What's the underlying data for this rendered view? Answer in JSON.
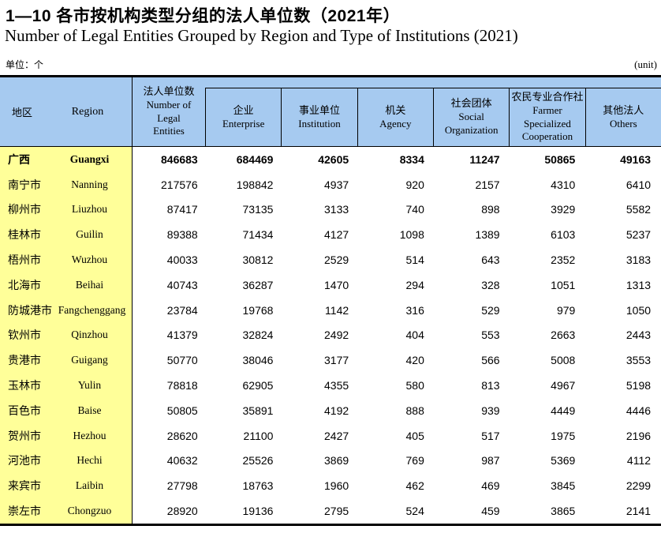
{
  "page": {
    "title_cn": "1—10 各市按机构类型分组的法人单位数（2021年）",
    "title_en": "Number of Legal Entities Grouped by Region and Type of Institutions (2021)",
    "unit_cn": "单位：个",
    "unit_en": "(unit)"
  },
  "colors": {
    "header_bg": "#A6CAF0",
    "region_col_bg": "#FFFF99",
    "border": "#000000"
  },
  "table": {
    "region_header": {
      "cn": "地区",
      "en": "Region"
    },
    "total_header": {
      "cn": "法人单位数",
      "en": "Number of\nLegal\nEntities"
    },
    "columns": [
      {
        "cn": "企业",
        "en": "Enterprise"
      },
      {
        "cn": "事业单位",
        "en": "Institution"
      },
      {
        "cn": "机关",
        "en": "Agency"
      },
      {
        "cn": "社会团体",
        "en": "Social\nOrganization"
      },
      {
        "cn": "农民专业合作社",
        "en": "Farmer\nSpecialized\nCooperation"
      },
      {
        "cn": "其他法人",
        "en": "Others"
      }
    ],
    "rows": [
      {
        "cn": "广西",
        "en": "Guangxi",
        "bold": true,
        "values": [
          846683,
          684469,
          42605,
          8334,
          11247,
          50865,
          49163
        ]
      },
      {
        "cn": "南宁市",
        "en": "Nanning",
        "bold": false,
        "values": [
          217576,
          198842,
          4937,
          920,
          2157,
          4310,
          6410
        ]
      },
      {
        "cn": "柳州市",
        "en": "Liuzhou",
        "bold": false,
        "values": [
          87417,
          73135,
          3133,
          740,
          898,
          3929,
          5582
        ]
      },
      {
        "cn": "桂林市",
        "en": "Guilin",
        "bold": false,
        "values": [
          89388,
          71434,
          4127,
          1098,
          1389,
          6103,
          5237
        ]
      },
      {
        "cn": "梧州市",
        "en": "Wuzhou",
        "bold": false,
        "values": [
          40033,
          30812,
          2529,
          514,
          643,
          2352,
          3183
        ]
      },
      {
        "cn": "北海市",
        "en": "Beihai",
        "bold": false,
        "values": [
          40743,
          36287,
          1470,
          294,
          328,
          1051,
          1313
        ]
      },
      {
        "cn": "防城港市",
        "en": "Fangchenggang",
        "bold": false,
        "values": [
          23784,
          19768,
          1142,
          316,
          529,
          979,
          1050
        ]
      },
      {
        "cn": "钦州市",
        "en": "Qinzhou",
        "bold": false,
        "values": [
          41379,
          32824,
          2492,
          404,
          553,
          2663,
          2443
        ]
      },
      {
        "cn": "贵港市",
        "en": "Guigang",
        "bold": false,
        "values": [
          50770,
          38046,
          3177,
          420,
          566,
          5008,
          3553
        ]
      },
      {
        "cn": "玉林市",
        "en": "Yulin",
        "bold": false,
        "values": [
          78818,
          62905,
          4355,
          580,
          813,
          4967,
          5198
        ]
      },
      {
        "cn": "百色市",
        "en": "Baise",
        "bold": false,
        "values": [
          50805,
          35891,
          4192,
          888,
          939,
          4449,
          4446
        ]
      },
      {
        "cn": "贺州市",
        "en": "Hezhou",
        "bold": false,
        "values": [
          28620,
          21100,
          2427,
          405,
          517,
          1975,
          2196
        ]
      },
      {
        "cn": "河池市",
        "en": "Hechi",
        "bold": false,
        "values": [
          40632,
          25526,
          3869,
          769,
          987,
          5369,
          4112
        ]
      },
      {
        "cn": "来宾市",
        "en": "Laibin",
        "bold": false,
        "values": [
          27798,
          18763,
          1960,
          462,
          469,
          3845,
          2299
        ]
      },
      {
        "cn": "崇左市",
        "en": "Chongzuo",
        "bold": false,
        "values": [
          28920,
          19136,
          2795,
          524,
          459,
          3865,
          2141
        ]
      }
    ]
  }
}
